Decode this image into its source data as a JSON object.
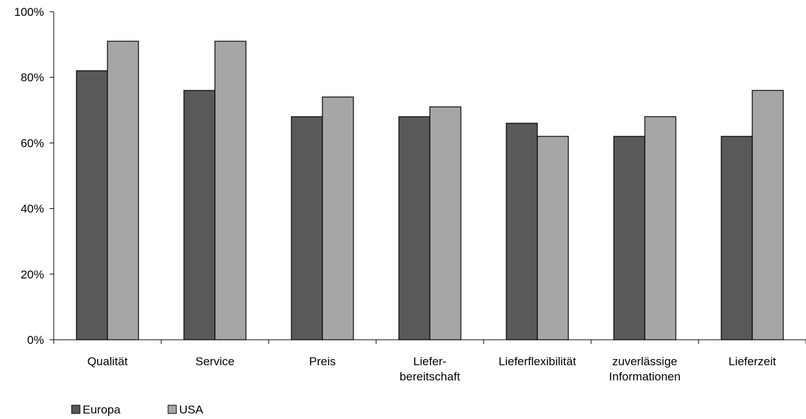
{
  "chart_data": {
    "type": "bar",
    "title": "",
    "xlabel": "",
    "ylabel": "",
    "categories": [
      [
        "Qualität"
      ],
      [
        "Service"
      ],
      [
        "Preis"
      ],
      [
        "Liefer-",
        "bereitschaft"
      ],
      [
        "Lieferflexibilität"
      ],
      [
        "zuverlässige",
        "Informationen"
      ],
      [
        "Lieferzeit"
      ]
    ],
    "series": [
      {
        "name": "Europa",
        "color": "#595959",
        "values": [
          82,
          76,
          68,
          68,
          66,
          62,
          62
        ]
      },
      {
        "name": "USA",
        "color": "#a6a6a6",
        "values": [
          91,
          91,
          74,
          71,
          62,
          68,
          76
        ]
      }
    ],
    "ylim": [
      0,
      100
    ],
    "yticks": [
      0,
      20,
      40,
      60,
      80,
      100
    ],
    "ytick_labels": [
      "0%",
      "20%",
      "40%",
      "60%",
      "80%",
      "100%"
    ],
    "grid": false,
    "legend_position": "bottom-left"
  }
}
